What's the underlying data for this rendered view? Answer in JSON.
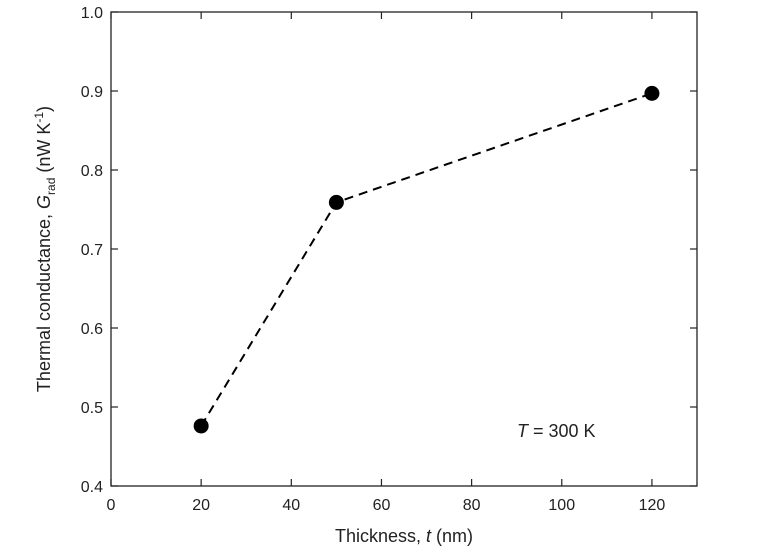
{
  "chart_data": {
    "type": "scatter",
    "title": "",
    "xlabel": {
      "text": "Thickness, ",
      "var": "t",
      "unit": " (nm)"
    },
    "ylabel": {
      "text": "Thermal conductance, ",
      "var": "G",
      "sub": "rad",
      "unit_pre": " (nW K",
      "sup": "-1",
      "unit_post": ")"
    },
    "xlim": [
      0,
      130
    ],
    "ylim": [
      0.4,
      1.0
    ],
    "xticks": [
      0,
      20,
      40,
      60,
      80,
      100,
      120
    ],
    "yticks": [
      0.4,
      0.5,
      0.6,
      0.7,
      0.8,
      0.9,
      1.0
    ],
    "xtick_labels": [
      "0",
      "20",
      "40",
      "60",
      "80",
      "100",
      "120"
    ],
    "ytick_labels": [
      "0.4",
      "0.5",
      "0.6",
      "0.7",
      "0.8",
      "0.9",
      "1.0"
    ],
    "series": [
      {
        "x": [
          20,
          50,
          120
        ],
        "y": [
          0.476,
          0.759,
          0.897
        ],
        "marker": "circle",
        "line": "dashed",
        "color": "#000000"
      }
    ],
    "annotation": {
      "var": "T",
      "text": " = 300 K"
    },
    "grid": false
  }
}
